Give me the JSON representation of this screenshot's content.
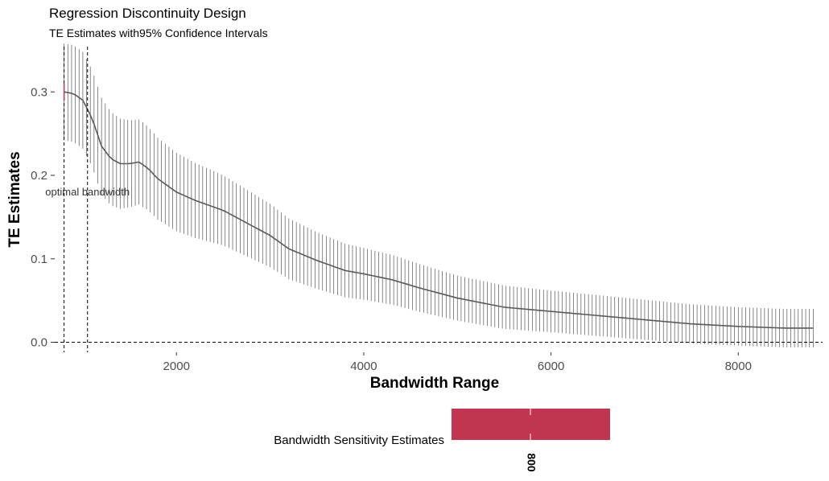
{
  "chart_data": {
    "type": "line",
    "title": "Regression Discontinuity Design",
    "subtitle": "TE Estimates with95% Confidence Intervals",
    "xlabel": "Bandwidth Range",
    "ylabel": "TE Estimates",
    "xlim": [
      700,
      8900
    ],
    "ylim": [
      -0.012,
      0.36
    ],
    "x_ticks": [
      2000,
      4000,
      6000,
      8000
    ],
    "x_tick_labels": [
      "2000",
      "4000",
      "6000",
      "8000"
    ],
    "y_ticks": [
      0.0,
      0.1,
      0.2,
      0.3
    ],
    "y_tick_labels": [
      "0.0",
      "0.1",
      "0.2",
      "0.3"
    ],
    "grid": false,
    "bandwidth_start": 800,
    "bandwidth_end": 8800,
    "bandwidth_step": 40,
    "estimate_curve": {
      "x": [
        800,
        900,
        1000,
        1100,
        1200,
        1300,
        1400,
        1500,
        1600,
        1700,
        1800,
        2000,
        2200,
        2500,
        2700,
        3000,
        3200,
        3500,
        3800,
        4000,
        4300,
        4600,
        5000,
        5500,
        6000,
        6500,
        7000,
        7500,
        8000,
        8500,
        8800
      ],
      "y": [
        0.3,
        0.298,
        0.29,
        0.268,
        0.235,
        0.22,
        0.214,
        0.214,
        0.216,
        0.208,
        0.196,
        0.18,
        0.17,
        0.158,
        0.146,
        0.128,
        0.112,
        0.098,
        0.086,
        0.082,
        0.075,
        0.065,
        0.053,
        0.042,
        0.037,
        0.032,
        0.027,
        0.022,
        0.019,
        0.017,
        0.017
      ]
    },
    "ci_halfwidth_curve": {
      "x": [
        800,
        1000,
        1200,
        1500,
        2000,
        2500,
        3000,
        3500,
        4000,
        5000,
        6000,
        7000,
        8000,
        8800
      ],
      "y": [
        0.058,
        0.058,
        0.058,
        0.052,
        0.047,
        0.042,
        0.038,
        0.034,
        0.031,
        0.027,
        0.025,
        0.024,
        0.023,
        0.023
      ]
    },
    "reference_lines": {
      "vertical": [
        800,
        1050
      ],
      "horizontal": [
        0.0
      ]
    },
    "annotation": {
      "text": "optimal bandwidth",
      "x": 1050,
      "y": 0.18
    },
    "colors": {
      "line": "#5a5a5a",
      "errorbar": "#555555",
      "reference": "#000000",
      "highlight": "#c0354f"
    },
    "legend": {
      "title": "Bandwidth Sensitivity Estimates",
      "placement": "bottom",
      "gradient_color": "#c0354f",
      "labels": [
        "800"
      ]
    }
  }
}
